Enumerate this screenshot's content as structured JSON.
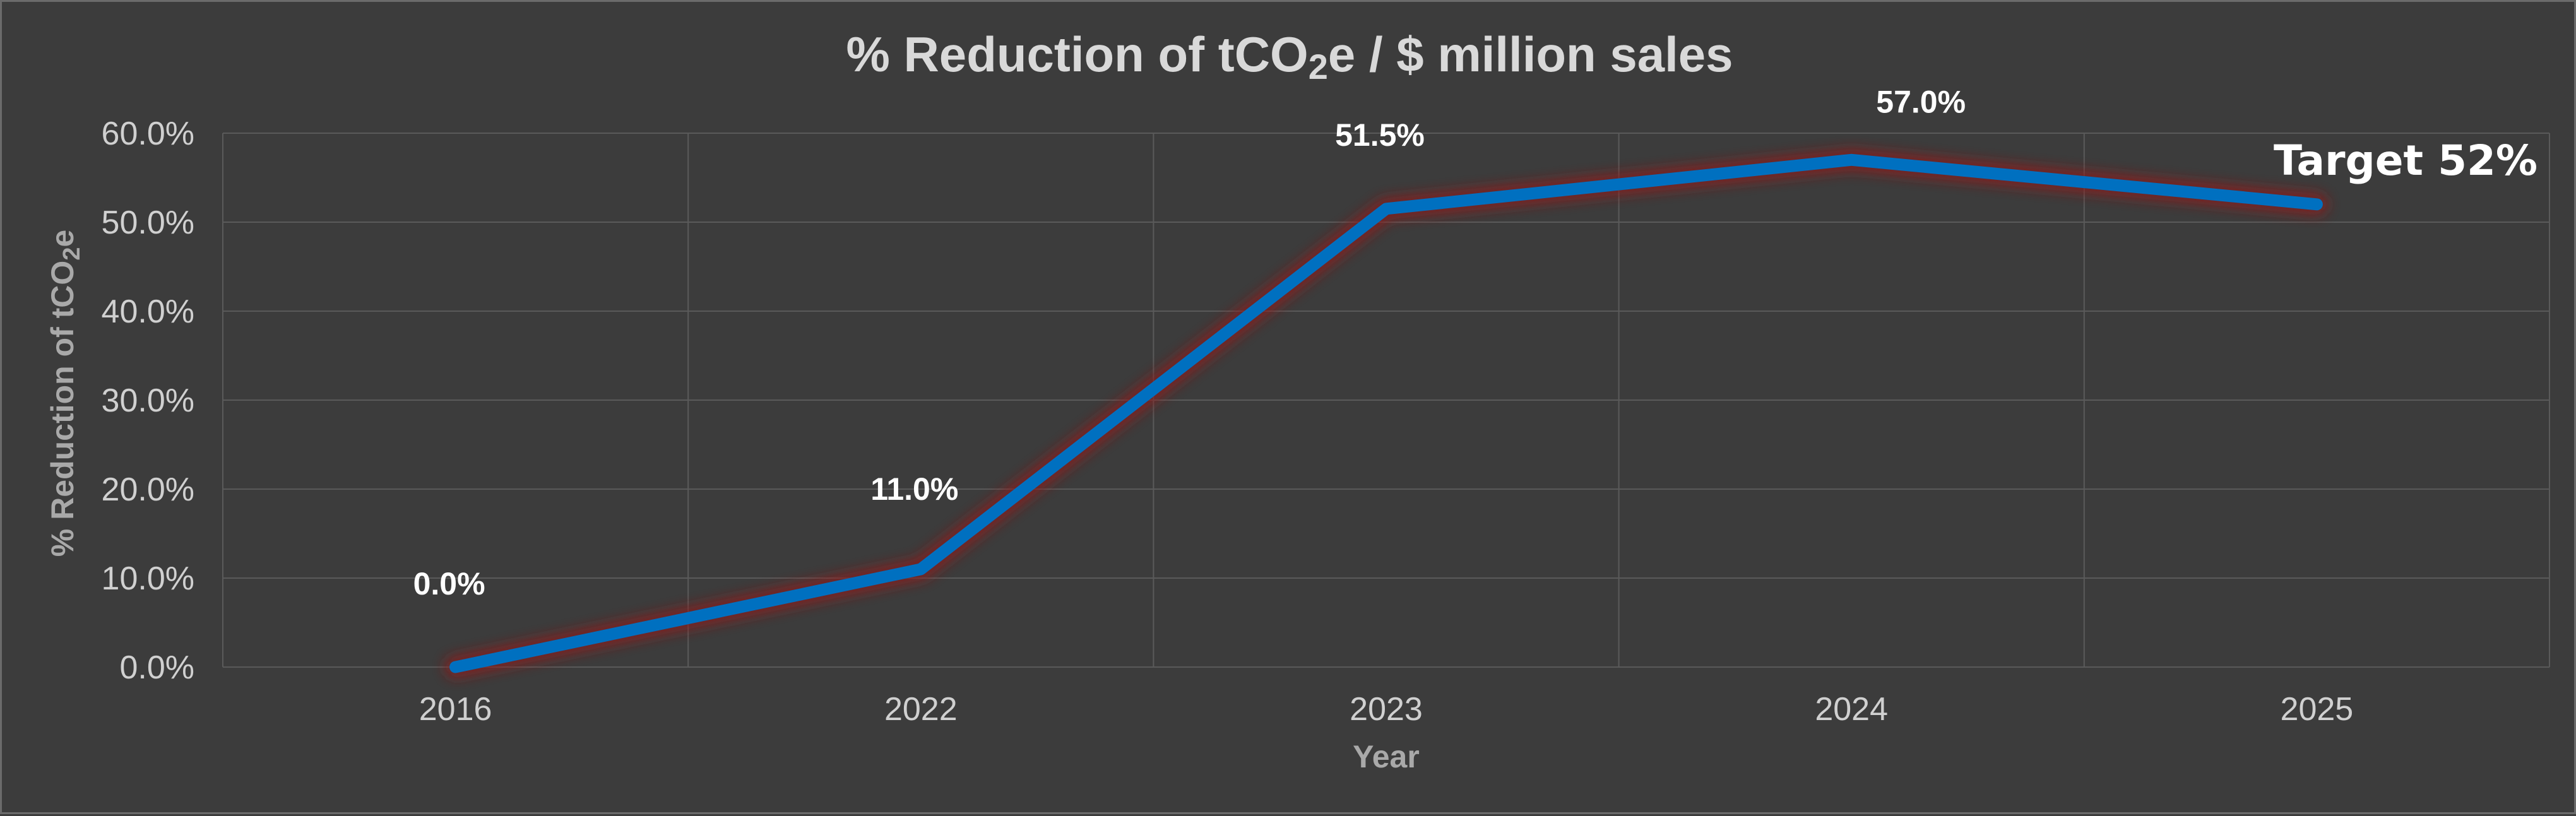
{
  "chart_data": {
    "type": "line",
    "title_main": "% Reduction of tCO",
    "title_sub": "2",
    "title_rest": "e / $ million sales",
    "xlabel": "Year",
    "ylabel_main": "% Reduction of tCO",
    "ylabel_sub": "2",
    "ylabel_rest": "e",
    "categories": [
      "2016",
      "2022",
      "2023",
      "2024",
      "2025"
    ],
    "ylim": [
      0,
      60
    ],
    "yticks": [
      0,
      10,
      20,
      30,
      40,
      50,
      60
    ],
    "ytick_labels": [
      "0.0%",
      "10.0%",
      "20.0%",
      "30.0%",
      "40.0%",
      "50.0%",
      "60.0%"
    ],
    "grid": true,
    "series": [
      {
        "values": [
          0.0,
          11.0,
          51.5,
          57.0,
          52.0
        ],
        "color": "#0070c0",
        "glow_color": "#8b1a1a"
      }
    ],
    "data_labels": [
      "0.0%",
      "11.0%",
      "51.5%",
      "57.0%",
      ""
    ],
    "annotation": "Target 52%"
  },
  "colors": {
    "background": "#3c3c3c",
    "gridline": "#5a5a5a",
    "line": "#0070c0",
    "text": "#d9d9d9"
  }
}
